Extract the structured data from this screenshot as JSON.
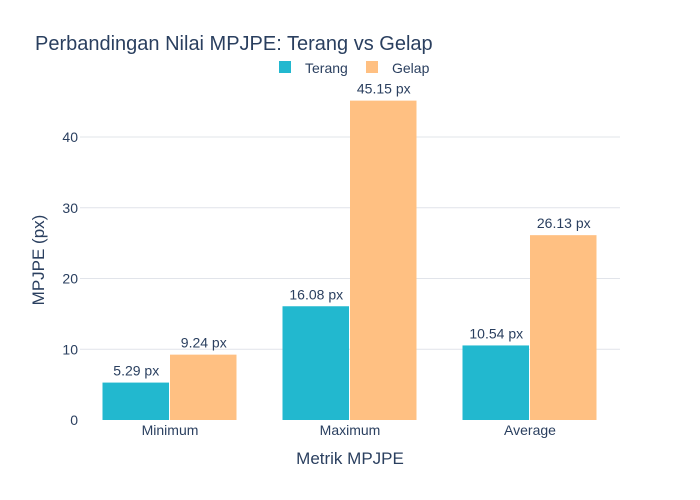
{
  "chart_data": {
    "type": "bar",
    "title": "Perbandingan Nilai MPJPE: Terang vs Gelap",
    "xlabel": "Metrik MPJPE",
    "ylabel": "MPJPE (px)",
    "categories": [
      "Minimum",
      "Maximum",
      "Average"
    ],
    "series": [
      {
        "name": "Terang",
        "color": "#22b8cf",
        "values": [
          5.29,
          16.08,
          10.54
        ],
        "labels": [
          "5.29 px",
          "16.08 px",
          "10.54 px"
        ]
      },
      {
        "name": "Gelap",
        "color": "#ffc082",
        "values": [
          9.24,
          45.15,
          26.13
        ],
        "labels": [
          "9.24 px",
          "45.15 px",
          "26.13 px"
        ]
      }
    ],
    "ylim": [
      0,
      47.5
    ],
    "yticks": [
      0,
      10,
      20,
      30,
      40
    ],
    "grid": true,
    "legend_position": "top-center"
  }
}
